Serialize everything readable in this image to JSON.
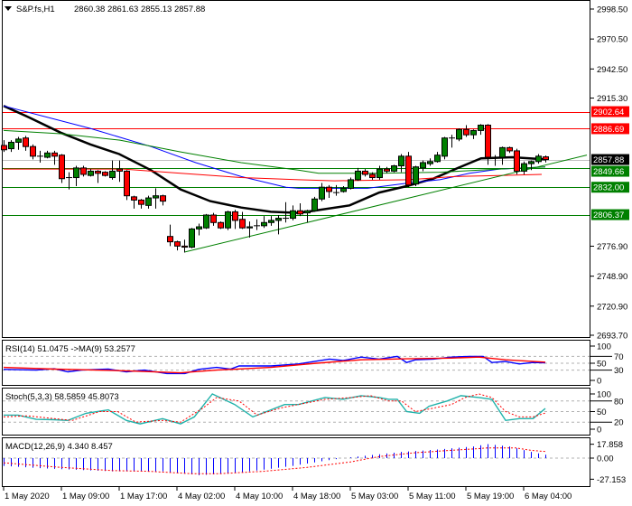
{
  "header": {
    "symbol": "S&P.fs,H1",
    "ohlc": "2860.38 2861.63 2855.13 2857.88"
  },
  "price_axis": {
    "range": [
      2693.7,
      2998.5
    ],
    "ticks": [
      "2998.50",
      "2970.50",
      "2942.50",
      "2915.30",
      "2776.90",
      "2748.90",
      "2720.90",
      "2693.70"
    ]
  },
  "levels": [
    {
      "value": 2902.64,
      "label": "2902.64",
      "color": "#ff0000"
    },
    {
      "value": 2886.69,
      "label": "2886.69",
      "color": "#ff0000"
    },
    {
      "value": 2857.88,
      "label": "2857.88",
      "color": "#000000",
      "line": "#c0c0c0"
    },
    {
      "value": 2849.66,
      "label": "2849.66",
      "color": "#008000"
    },
    {
      "value": 2832.0,
      "label": "2832.00",
      "color": "#008000"
    },
    {
      "value": 2806.37,
      "label": "2806.37",
      "color": "#008000"
    }
  ],
  "colors": {
    "bull": "#008000",
    "bear": "#ff0000",
    "ma_fast": "#000000",
    "ma_blue": "#0000ff",
    "ma_green": "#008000",
    "ma_red": "#ff0000",
    "rsi": "#0000ff",
    "rsi_ma": "#ff0000",
    "stoch_main": "#20b2aa",
    "stoch_signal": "#ff0000",
    "macd_hist": "#0000ff",
    "macd_signal": "#ff0000"
  },
  "candles": [
    [
      2871,
      2876,
      2865,
      2867
    ],
    [
      2868,
      2876,
      2865,
      2874
    ],
    [
      2874,
      2879,
      2867,
      2877
    ],
    [
      2878,
      2880,
      2866,
      2870
    ],
    [
      2870,
      2872,
      2858,
      2861
    ],
    [
      2861,
      2866,
      2855,
      2861
    ],
    [
      2860,
      2866,
      2859,
      2864
    ],
    [
      2864,
      2866,
      2853,
      2861
    ],
    [
      2862,
      2863,
      2836,
      2840
    ],
    [
      2841,
      2846,
      2830,
      2841
    ],
    [
      2841,
      2852,
      2833,
      2850
    ],
    [
      2850,
      2852,
      2842,
      2844
    ],
    [
      2843,
      2849,
      2842,
      2847
    ],
    [
      2847,
      2848,
      2836,
      2845
    ],
    [
      2846,
      2847,
      2842,
      2843
    ],
    [
      2841,
      2857,
      2839,
      2847
    ],
    [
      2849,
      2857,
      2837,
      2847
    ],
    [
      2847,
      2848,
      2820,
      2824
    ],
    [
      2823,
      2824,
      2812,
      2820
    ],
    [
      2820,
      2821,
      2812,
      2816
    ],
    [
      2815,
      2824,
      2812,
      2822
    ],
    [
      2822,
      2831,
      2812,
      2824
    ],
    [
      2824,
      2825,
      2815,
      2819
    ],
    [
      2786,
      2797,
      2777,
      2781
    ],
    [
      2781,
      2782,
      2773,
      2777
    ],
    [
      2777,
      2783,
      2771,
      2776
    ],
    [
      2776,
      2794,
      2775,
      2793
    ],
    [
      2793,
      2798,
      2787,
      2795
    ],
    [
      2794,
      2807,
      2793,
      2806
    ],
    [
      2806,
      2808,
      2796,
      2799
    ],
    [
      2799,
      2800,
      2793,
      2794
    ],
    [
      2794,
      2810,
      2792,
      2809
    ],
    [
      2809,
      2811,
      2793,
      2801
    ],
    [
      2802,
      2809,
      2793,
      2794
    ],
    [
      2794,
      2800,
      2785,
      2795
    ],
    [
      2796,
      2802,
      2792,
      2796
    ],
    [
      2796,
      2805,
      2794,
      2799
    ],
    [
      2799,
      2805,
      2796,
      2801
    ],
    [
      2801,
      2806,
      2788,
      2803
    ],
    [
      2803,
      2818,
      2799,
      2803
    ],
    [
      2803,
      2815,
      2801,
      2810
    ],
    [
      2810,
      2817,
      2805,
      2807
    ],
    [
      2808,
      2811,
      2799,
      2810
    ],
    [
      2810,
      2823,
      2809,
      2821
    ],
    [
      2821,
      2836,
      2819,
      2832
    ],
    [
      2832,
      2834,
      2822,
      2828
    ],
    [
      2827,
      2834,
      2824,
      2827
    ],
    [
      2828,
      2833,
      2827,
      2831
    ],
    [
      2831,
      2841,
      2830,
      2839
    ],
    [
      2839,
      2850,
      2838,
      2847
    ],
    [
      2847,
      2849,
      2842,
      2844
    ],
    [
      2844,
      2846,
      2839,
      2841
    ],
    [
      2841,
      2852,
      2839,
      2849
    ],
    [
      2849,
      2851,
      2845,
      2847
    ],
    [
      2847,
      2853,
      2846,
      2852
    ],
    [
      2852,
      2863,
      2846,
      2861
    ],
    [
      2861,
      2865,
      2832,
      2834
    ],
    [
      2835,
      2852,
      2833,
      2851
    ],
    [
      2850,
      2857,
      2847,
      2855
    ],
    [
      2854,
      2859,
      2852,
      2856
    ],
    [
      2856,
      2865,
      2855,
      2862
    ],
    [
      2861,
      2879,
      2858,
      2878
    ],
    [
      2878,
      2881,
      2869,
      2878
    ],
    [
      2877,
      2887,
      2875,
      2886
    ],
    [
      2886,
      2890,
      2879,
      2881
    ],
    [
      2881,
      2886,
      2877,
      2885
    ],
    [
      2885,
      2891,
      2881,
      2890
    ],
    [
      2890,
      2891,
      2853,
      2860
    ],
    [
      2860,
      2862,
      2852,
      2860
    ],
    [
      2860,
      2870,
      2853,
      2869
    ],
    [
      2869,
      2870,
      2864,
      2866
    ],
    [
      2866,
      2868,
      2844,
      2847
    ],
    [
      2847,
      2856,
      2844,
      2854
    ],
    [
      2854,
      2857,
      2848,
      2856
    ],
    [
      2856,
      2863,
      2854,
      2861
    ],
    [
      2860.38,
      2861.63,
      2855.13,
      2857.88
    ]
  ],
  "moving_averages": [
    {
      "name": "ma_fast",
      "points": [
        [
          0,
          2908
        ],
        [
          3.6,
          2897
        ],
        [
          7.9,
          2883
        ],
        [
          12,
          2872
        ],
        [
          16,
          2863
        ],
        [
          20.4,
          2848
        ],
        [
          24.5,
          2830
        ],
        [
          28.6,
          2819
        ],
        [
          32.9,
          2813
        ],
        [
          37,
          2809
        ],
        [
          40.8,
          2808
        ],
        [
          42,
          2809
        ],
        [
          47.9,
          2815
        ],
        [
          52,
          2827
        ],
        [
          55.8,
          2833
        ],
        [
          59.5,
          2840
        ],
        [
          62.9,
          2850
        ],
        [
          66.1,
          2859
        ],
        [
          70.4,
          2860
        ],
        [
          75,
          2858
        ]
      ]
    },
    {
      "name": "ma_blue",
      "points": [
        [
          0,
          2908
        ],
        [
          12,
          2887
        ],
        [
          20.4,
          2870
        ],
        [
          26.6,
          2855
        ],
        [
          32.9,
          2842
        ],
        [
          39.1,
          2832
        ],
        [
          40.8,
          2831
        ],
        [
          50.4,
          2831
        ],
        [
          56.1,
          2836
        ],
        [
          60.4,
          2839
        ],
        [
          64.5,
          2845
        ],
        [
          68.6,
          2849
        ],
        [
          75,
          2851
        ]
      ]
    },
    {
      "name": "ma_green",
      "points": [
        [
          0,
          2885
        ],
        [
          7.9,
          2882
        ],
        [
          16.1,
          2876
        ],
        [
          24.5,
          2865
        ],
        [
          32.9,
          2855
        ],
        [
          40.8,
          2848
        ],
        [
          43.6,
          2845
        ],
        [
          51.9,
          2845
        ],
        [
          60.4,
          2846
        ],
        [
          68.6,
          2849
        ],
        [
          75,
          2851
        ]
      ]
    },
    {
      "name": "ma_red",
      "points": [
        [
          0,
          2849
        ],
        [
          16.6,
          2849
        ],
        [
          24.5,
          2845
        ],
        [
          32.9,
          2841
        ],
        [
          40.8,
          2839
        ],
        [
          45.8,
          2838
        ],
        [
          56.1,
          2839
        ],
        [
          62.4,
          2842
        ],
        [
          68.6,
          2843
        ],
        [
          74.5,
          2844
        ]
      ]
    }
  ],
  "trendline": [
    [
      25.1,
      2771.5
    ],
    [
      80.75,
      2862
    ]
  ],
  "rsi": {
    "label": "RSI(14) 51.0475  ->MA(9) 53.2577",
    "ticks": [
      "100",
      "70",
      "50",
      "30",
      "0"
    ],
    "levels": [
      70,
      50,
      30
    ],
    "line": [
      [
        0,
        32
      ],
      [
        4.5,
        30
      ],
      [
        7,
        34
      ],
      [
        8.9,
        25
      ],
      [
        10.8,
        30
      ],
      [
        14.5,
        33
      ],
      [
        17,
        25
      ],
      [
        19.5,
        30
      ],
      [
        22.6,
        20
      ],
      [
        25.1,
        20
      ],
      [
        27,
        32
      ],
      [
        29.5,
        38
      ],
      [
        31.4,
        33
      ],
      [
        32.6,
        42
      ],
      [
        37,
        42
      ],
      [
        40.8,
        48
      ],
      [
        43.3,
        56
      ],
      [
        45.1,
        62
      ],
      [
        47,
        58
      ],
      [
        49.5,
        68
      ],
      [
        52,
        62
      ],
      [
        54.5,
        70
      ],
      [
        55.8,
        52
      ],
      [
        57,
        60
      ],
      [
        59.5,
        62
      ],
      [
        62,
        68
      ],
      [
        64.5,
        70
      ],
      [
        66.4,
        70
      ],
      [
        67.6,
        52
      ],
      [
        69.5,
        55
      ],
      [
        71.4,
        48
      ],
      [
        73.3,
        52
      ],
      [
        75,
        51.05
      ]
    ],
    "ma": [
      [
        0,
        38
      ],
      [
        7,
        33
      ],
      [
        10.8,
        31
      ],
      [
        17,
        28
      ],
      [
        24.5,
        22
      ],
      [
        29.5,
        30
      ],
      [
        37,
        38
      ],
      [
        43.3,
        50
      ],
      [
        49.5,
        60
      ],
      [
        55.8,
        63
      ],
      [
        62,
        65
      ],
      [
        65.8,
        68
      ],
      [
        69.5,
        60
      ],
      [
        75,
        53.26
      ]
    ]
  },
  "stoch": {
    "label": "Stoch(5,3,3) 58.5859 45.8073",
    "ticks": [
      "100",
      "80",
      "50",
      "20",
      "0"
    ],
    "levels": [
      80,
      50,
      20
    ],
    "main": [
      [
        0,
        40
      ],
      [
        2,
        40
      ],
      [
        4.5,
        28
      ],
      [
        7,
        27
      ],
      [
        8.9,
        25
      ],
      [
        11.4,
        45
      ],
      [
        14.5,
        55
      ],
      [
        17,
        25
      ],
      [
        18.9,
        15
      ],
      [
        22,
        30
      ],
      [
        24.5,
        15
      ],
      [
        26.4,
        35
      ],
      [
        28.9,
        100
      ],
      [
        32,
        70
      ],
      [
        34.5,
        35
      ],
      [
        37,
        55
      ],
      [
        38.9,
        70
      ],
      [
        40.8,
        70
      ],
      [
        44.5,
        90
      ],
      [
        47,
        85
      ],
      [
        49.5,
        95
      ],
      [
        52,
        90
      ],
      [
        53.3,
        85
      ],
      [
        54.5,
        85
      ],
      [
        55.8,
        50
      ],
      [
        57.6,
        45
      ],
      [
        58.9,
        65
      ],
      [
        61.4,
        80
      ],
      [
        63.3,
        95
      ],
      [
        65.8,
        90
      ],
      [
        67.6,
        85
      ],
      [
        69.5,
        25
      ],
      [
        71.4,
        30
      ],
      [
        73.3,
        30
      ],
      [
        75,
        58.59
      ]
    ],
    "signal": [
      [
        0,
        35
      ],
      [
        3.3,
        38
      ],
      [
        7,
        30
      ],
      [
        9.5,
        25
      ],
      [
        13.3,
        50
      ],
      [
        15.8,
        50
      ],
      [
        18.3,
        20
      ],
      [
        22,
        25
      ],
      [
        24.5,
        20
      ],
      [
        27.6,
        60
      ],
      [
        29.5,
        90
      ],
      [
        32.6,
        80
      ],
      [
        35.1,
        40
      ],
      [
        38.3,
        60
      ],
      [
        40.8,
        70
      ],
      [
        44.5,
        85
      ],
      [
        48.3,
        90
      ],
      [
        50.8,
        95
      ],
      [
        53.3,
        80
      ],
      [
        55.1,
        80
      ],
      [
        57,
        50
      ],
      [
        58.3,
        55
      ],
      [
        62,
        70
      ],
      [
        63.9,
        90
      ],
      [
        65.8,
        100
      ],
      [
        67.6,
        90
      ],
      [
        69.5,
        50
      ],
      [
        71.4,
        35
      ],
      [
        73.3,
        35
      ],
      [
        75,
        45.81
      ]
    ]
  },
  "macd": {
    "label": "MACD(12,26,9) 4.340 8.457",
    "ticks": [
      "17.858",
      "0.00",
      "-27.153"
    ],
    "histogram": [
      [
        0,
        -10
      ],
      [
        5,
        -13
      ],
      [
        10,
        -15
      ],
      [
        15,
        -17
      ],
      [
        22,
        -17
      ],
      [
        27,
        -22
      ],
      [
        31,
        -20
      ],
      [
        35,
        -16
      ],
      [
        40,
        -10
      ],
      [
        44,
        -4
      ],
      [
        47,
        0
      ],
      [
        50,
        3
      ],
      [
        55,
        8
      ],
      [
        60,
        11
      ],
      [
        65,
        15
      ],
      [
        67,
        18
      ],
      [
        70,
        15
      ],
      [
        73,
        8
      ],
      [
        75,
        4.34
      ]
    ],
    "signal": [
      [
        0,
        -6
      ],
      [
        8,
        -12
      ],
      [
        15,
        -16
      ],
      [
        20,
        -17
      ],
      [
        26,
        -20
      ],
      [
        30,
        -20
      ],
      [
        36,
        -17
      ],
      [
        42,
        -12
      ],
      [
        48,
        -5
      ],
      [
        52,
        2
      ],
      [
        57,
        7
      ],
      [
        62,
        10
      ],
      [
        67,
        13
      ],
      [
        71,
        13
      ],
      [
        73,
        10
      ],
      [
        75,
        8.457
      ]
    ]
  },
  "time_axis": [
    "1 May 2020",
    "1 May 09:00",
    "1 May 17:00",
    "4 May 02:00",
    "4 May 10:00",
    "4 May 18:00",
    "5 May 03:00",
    "5 May 11:00",
    "5 May 19:00",
    "6 May 04:00"
  ]
}
